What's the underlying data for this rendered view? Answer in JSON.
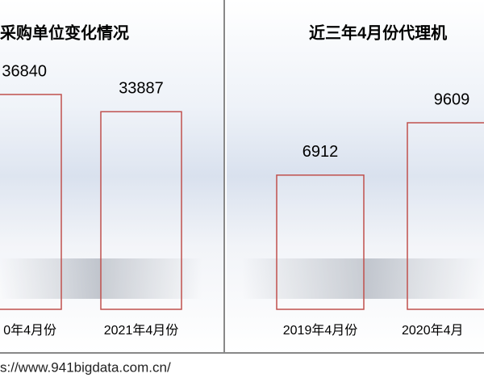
{
  "chart_data": [
    {
      "type": "bar",
      "title": "采购单位变化情况",
      "categories": [
        "0年4月份",
        "2021年4月份"
      ],
      "values": [
        36840,
        33887
      ],
      "color": "#c0504d"
    },
    {
      "type": "bar",
      "title": "近三年4月份代理机",
      "categories": [
        "2019年4月份",
        "2020年4月"
      ],
      "values": [
        6912,
        9609
      ],
      "color": "#c0504d"
    }
  ],
  "footer": {
    "url": "s://www.941bigdata.com.cn/"
  }
}
